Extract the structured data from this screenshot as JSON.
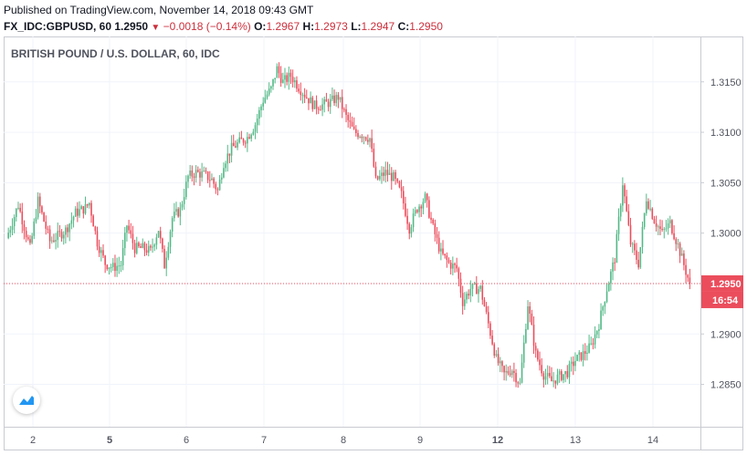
{
  "header": {
    "published": "Published on TradingView.com, November 14, 2018 09:43 GMT",
    "symbol": "FX_IDC:GBPUSD, 60",
    "last": "1.2950",
    "change": "−0.0018 (−0.14%)",
    "o_label": "O:",
    "o_value": "1.2967",
    "h_label": "H:",
    "h_value": "1.2973",
    "l_label": "L:",
    "l_value": "1.2947",
    "c_label": "C:",
    "c_value": "1.2950",
    "down_icon": "triangle-down-icon"
  },
  "chart_data": {
    "type": "candlestick",
    "title": "BRITISH POUND / U.S. DOLLAR, 60, IDC",
    "y_ticks": [
      "1.3150",
      "1.3100",
      "1.3050",
      "1.3000",
      "1.2950",
      "1.2900",
      "1.2850"
    ],
    "x_ticks": [
      "2",
      "5",
      "6",
      "7",
      "8",
      "9",
      "12",
      "13",
      "14"
    ],
    "bold_x_ticks": [
      "5",
      "12"
    ],
    "ylim": [
      1.2808,
      1.3195
    ],
    "last_price": "1.2950",
    "last_price_value": 1.295,
    "countdown": "16:54",
    "price_path": [
      [
        0,
        1.2995
      ],
      [
        6,
        1.3028
      ],
      [
        12,
        1.2985
      ],
      [
        16,
        1.3032
      ],
      [
        22,
        1.2992
      ],
      [
        26,
        1.2997
      ],
      [
        30,
        1.3003
      ],
      [
        35,
        1.302
      ],
      [
        40,
        1.3025
      ],
      [
        42,
        1.303
      ],
      [
        46,
        1.2991
      ],
      [
        50,
        1.297
      ],
      [
        54,
        1.2966
      ],
      [
        58,
        1.2969
      ],
      [
        61,
        1.3008
      ],
      [
        65,
        1.2985
      ],
      [
        69,
        1.2985
      ],
      [
        73,
        1.2982
      ],
      [
        77,
        1.3004
      ],
      [
        80,
        1.2968
      ],
      [
        84,
        1.3015
      ],
      [
        88,
        1.3023
      ],
      [
        92,
        1.3056
      ],
      [
        96,
        1.306
      ],
      [
        100,
        1.3058
      ],
      [
        104,
        1.3053
      ],
      [
        107,
        1.3042
      ],
      [
        110,
        1.307
      ],
      [
        114,
        1.3084
      ],
      [
        118,
        1.309
      ],
      [
        122,
        1.3095
      ],
      [
        126,
        1.3108
      ],
      [
        130,
        1.3132
      ],
      [
        134,
        1.3143
      ],
      [
        137,
        1.3163
      ],
      [
        140,
        1.315
      ],
      [
        144,
        1.3156
      ],
      [
        148,
        1.3145
      ],
      [
        152,
        1.3135
      ],
      [
        156,
        1.3126
      ],
      [
        160,
        1.3127
      ],
      [
        164,
        1.313
      ],
      [
        168,
        1.3135
      ],
      [
        172,
        1.3115
      ],
      [
        176,
        1.31
      ],
      [
        180,
        1.3098
      ],
      [
        184,
        1.3094
      ],
      [
        187,
        1.3052
      ],
      [
        192,
        1.306
      ],
      [
        196,
        1.3055
      ],
      [
        200,
        1.3038
      ],
      [
        204,
        1.3005
      ],
      [
        208,
        1.3025
      ],
      [
        212,
        1.3035
      ],
      [
        216,
        1.3005
      ],
      [
        220,
        1.298
      ],
      [
        224,
        1.297
      ],
      [
        228,
        1.2965
      ],
      [
        231,
        1.2932
      ],
      [
        235,
        1.2945
      ],
      [
        240,
        1.2945
      ],
      [
        244,
        1.291
      ],
      [
        248,
        1.2875
      ],
      [
        252,
        1.286
      ],
      [
        256,
        1.2865
      ],
      [
        260,
        1.285
      ],
      [
        264,
        1.293
      ],
      [
        268,
        1.288
      ],
      [
        272,
        1.286
      ],
      [
        276,
        1.2853
      ],
      [
        280,
        1.2858
      ],
      [
        284,
        1.2862
      ],
      [
        288,
        1.2874
      ],
      [
        292,
        1.288
      ],
      [
        296,
        1.2888
      ],
      [
        300,
        1.291
      ],
      [
        304,
        1.2945
      ],
      [
        308,
        1.2975
      ],
      [
        312,
        1.305
      ],
      [
        316,
        1.299
      ],
      [
        320,
        1.297
      ],
      [
        324,
        1.3035
      ],
      [
        328,
        1.3013
      ],
      [
        332,
        1.3
      ],
      [
        336,
        1.301
      ],
      [
        340,
        1.2988
      ],
      [
        344,
        1.2962
      ],
      [
        346,
        1.295
      ]
    ]
  }
}
